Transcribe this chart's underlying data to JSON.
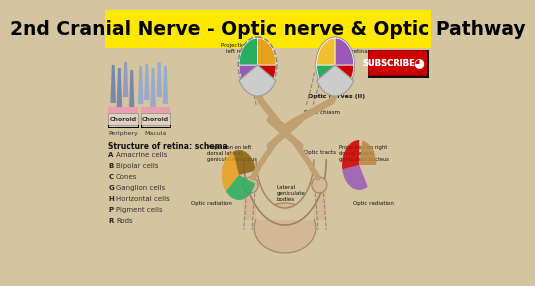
{
  "title": "2nd Cranial Nerve - Optic nerve & Optic Pathway",
  "title_bg": "#FFE800",
  "title_color": "#000000",
  "title_fontsize": 13.5,
  "bg_color": "#D4C4A0",
  "subscribe_bg": "#CC0000",
  "subscribe_text": "SUBSCRIBE",
  "structure_title": "Structure of retina: schema",
  "structure_items": [
    [
      "A",
      "Amacrine cells"
    ],
    [
      "B",
      "Bipolar cells"
    ],
    [
      "C",
      "Cones"
    ],
    [
      "G",
      "Ganglion cells"
    ],
    [
      "H",
      "Horizontal cells"
    ],
    [
      "P",
      "Pigment cells"
    ],
    [
      "R",
      "Rods"
    ]
  ],
  "periphery_label": "Periphery",
  "macula_label": "Macula",
  "choroid_label": "Choroid",
  "labels": {
    "projection_left_retina": "Projection on\nleft retina",
    "right_retina": "right retina",
    "optic_nerves": "Optic nerves (II)",
    "optic_chiasm": "Optic chiasm",
    "projection_left_dorsal": "Projection on left\ndorsal lateral\ngeniculate nucleus",
    "optic_tracts": "Optic tracts",
    "projection_right_dorsal": "Projection on right\ndorsal lateral\ngeniculate nucleus",
    "lateral_geniculate": "Lateral\ngeniculate\nbodies",
    "optic_radiation_left": "Optic radiation",
    "optic_radiation_right": "Optic radiation"
  },
  "left_eye_wedges": [
    [
      0,
      90,
      "#CC0000"
    ],
    [
      90,
      90,
      "#9B59B6"
    ],
    [
      180,
      90,
      "#27AE60"
    ],
    [
      270,
      90,
      "#E8A020"
    ]
  ],
  "right_eye_wedges": [
    [
      0,
      90,
      "#CC0000"
    ],
    [
      90,
      90,
      "#27AE60"
    ],
    [
      180,
      90,
      "#F0C030"
    ],
    [
      270,
      90,
      "#9B59B6"
    ]
  ],
  "left_proj_wedges": [
    [
      30,
      120,
      "#27AE60"
    ],
    [
      150,
      100,
      "#E8A020"
    ],
    [
      250,
      110,
      "#8B6010"
    ]
  ],
  "right_proj_wedges": [
    [
      200,
      120,
      "#9B59B6"
    ],
    [
      320,
      100,
      "#CC0000"
    ],
    [
      60,
      100,
      "#BB8844"
    ]
  ],
  "anatomy_color": "#D4B896",
  "anatomy_edge": "#A08060",
  "nerve_color": "#C0A070"
}
